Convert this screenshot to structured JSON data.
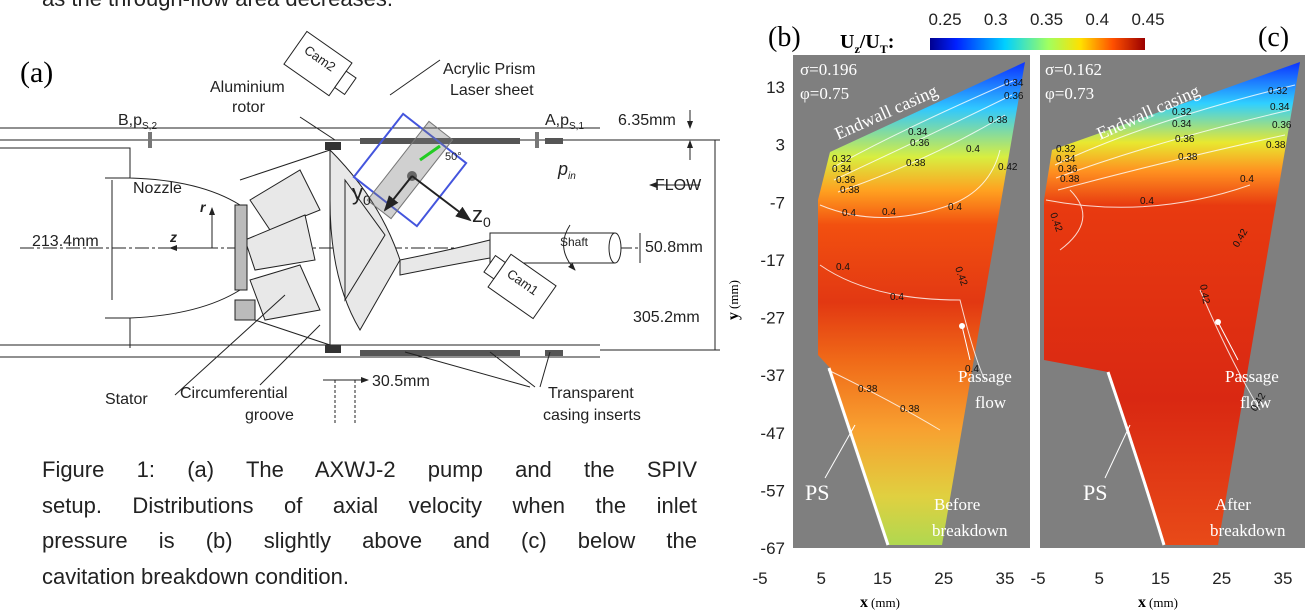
{
  "header": {
    "text": "as the through-flow area decreases."
  },
  "panel_a": {
    "label": "(a)",
    "rotor": [
      "Aluminium",
      "rotor"
    ],
    "cam2": "Cam2",
    "cam1": "Cam1",
    "prism": "Acrylic Prism",
    "laser": "Laser sheet",
    "port_b": {
      "main": "B,p",
      "sub": "S,2"
    },
    "port_a": {
      "main": "A,p",
      "sub": "S,1"
    },
    "dim_635": "6.35mm",
    "nozzle": "Nozzle",
    "r": "r",
    "y0": {
      "main": "y",
      "sub": "0"
    },
    "z0": {
      "main": "z",
      "sub": "0"
    },
    "p_in": {
      "main": "p",
      "sub": "in"
    },
    "flow": "FLOW",
    "angle": "50°",
    "dim_2134": "213.4mm",
    "z": "z",
    "shaft": "Shaft",
    "dim_508": "50.8mm",
    "dim_3052": "305.2mm",
    "stator": "Stator",
    "groove": [
      "Circumferential",
      "groove"
    ],
    "dim_305": "30.5mm",
    "inserts": [
      "Transparent",
      "casing inserts"
    ]
  },
  "caption": {
    "lines": [
      "Figure 1: (a) The AXWJ-2 pump and the SPIV",
      "setup. Distributions of axial velocity when the inlet",
      "pressure is (b) slightly above and (c) below the",
      "cavitation breakdown condition."
    ]
  },
  "colorbar": {
    "label": [
      "U",
      "z",
      "/U",
      "T",
      ":"
    ],
    "ticks": [
      0.25,
      0.3,
      0.35,
      0.4,
      0.45
    ]
  },
  "panel_b": {
    "label": "(b)",
    "sigma": "σ=0.196",
    "phi": "φ=0.75",
    "endwall": "Endwall casing",
    "passage": [
      "Passage",
      "flow"
    ],
    "ps": "PS",
    "state": [
      "Before",
      "breakdown"
    ],
    "y_label": {
      "main": "y",
      "unit": "(mm)"
    },
    "yticks": [
      13,
      3,
      -7,
      -17,
      -27,
      -37,
      -47,
      -57,
      -67
    ],
    "xticks": [
      -5,
      5,
      15,
      25,
      35
    ],
    "x_label": {
      "main": "x",
      "unit": "(mm)"
    },
    "contour_labels": [
      "0.32",
      "0.34",
      "0.36",
      "0.38",
      "0.34",
      "0.36",
      "0.38",
      "0.34",
      "0.36",
      "0.38",
      "0.4",
      "0.42",
      "0.4",
      "0.4",
      "0.4",
      "0.4",
      "0.42",
      "0.4",
      "0.4",
      "0.38",
      "0.38"
    ]
  },
  "panel_c": {
    "label": "(c)",
    "sigma": "σ=0.162",
    "phi": "φ=0.73",
    "endwall": "Endwall casing",
    "passage": [
      "Passage",
      "flow"
    ],
    "ps": "PS",
    "state": [
      "After",
      "breakdown"
    ],
    "xticks": [
      -5,
      5,
      15,
      25,
      35
    ],
    "x_label": {
      "main": "x",
      "unit": "(mm)"
    },
    "contour_labels": [
      "0.32",
      "0.34",
      "0.36",
      "0.38",
      "0.32",
      "0.34",
      "0.36",
      "0.38",
      "0.32",
      "0.34",
      "0.36",
      "0.38",
      "0.4",
      "0.4",
      "0.42",
      "0.42",
      "0.42",
      "0.42"
    ]
  }
}
